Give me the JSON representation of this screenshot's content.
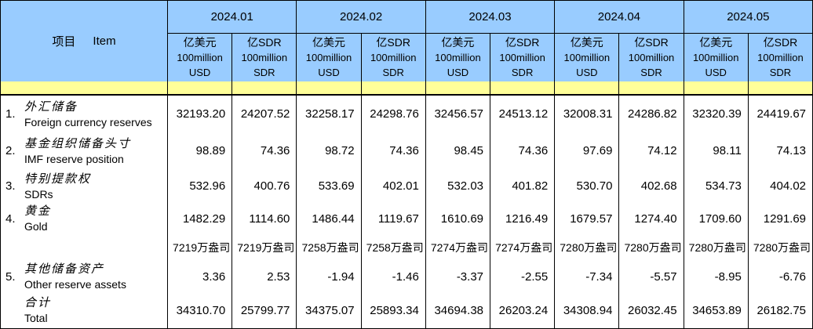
{
  "header": {
    "item_zh": "项目",
    "item_en": "Item",
    "months": [
      "2024.01",
      "2024.02",
      "2024.03",
      "2024.04",
      "2024.05"
    ],
    "units": {
      "usd": {
        "zh": "亿美元",
        "l2": "100million",
        "l3": "USD"
      },
      "sdr": {
        "zh": "亿SDR",
        "l2": "100million",
        "l3": "SDR"
      }
    }
  },
  "rows": [
    {
      "no": "1.",
      "zh": "外汇储备",
      "en": "Foreign currency reserves",
      "values": [
        "32193.20",
        "24207.52",
        "32258.17",
        "24298.76",
        "32456.57",
        "24513.12",
        "32008.31",
        "24286.82",
        "32320.39",
        "24419.67"
      ]
    },
    {
      "no": "2.",
      "zh": "基金组织储备头寸",
      "en": "IMF reserve position",
      "values": [
        "98.89",
        "74.36",
        "98.72",
        "74.36",
        "98.45",
        "74.36",
        "97.69",
        "74.12",
        "98.11",
        "74.13"
      ]
    },
    {
      "no": "3.",
      "zh": "特别提款权",
      "en": "SDRs",
      "values": [
        "532.96",
        "400.76",
        "533.69",
        "402.01",
        "532.03",
        "401.82",
        "530.70",
        "402.68",
        "534.73",
        "404.02"
      ]
    },
    {
      "no": "4.",
      "zh": "黄金",
      "en": "Gold",
      "values": [
        "1482.29",
        "1114.60",
        "1486.44",
        "1119.67",
        "1610.69",
        "1216.49",
        "1679.57",
        "1274.40",
        "1709.60",
        "1291.69"
      ]
    },
    {
      "no": "",
      "zh": "",
      "en": "",
      "values": [
        "7219万盎司",
        "7219万盎司",
        "7258万盎司",
        "7258万盎司",
        "7274万盎司",
        "7274万盎司",
        "7280万盎司",
        "7280万盎司",
        "7280万盎司",
        "7280万盎司"
      ]
    },
    {
      "no": "5.",
      "zh": "其他储备资产",
      "en": "Other reserve assets",
      "values": [
        "3.36",
        "2.53",
        "-1.94",
        "-1.46",
        "-3.37",
        "-2.55",
        "-7.34",
        "-5.57",
        "-8.95",
        "-6.76"
      ]
    },
    {
      "no": "",
      "zh": "合计",
      "en": "Total",
      "values": [
        "34310.70",
        "25799.77",
        "34375.07",
        "25893.34",
        "34694.38",
        "26203.24",
        "34308.94",
        "26032.45",
        "34653.89",
        "26182.75"
      ]
    }
  ],
  "colors": {
    "header_bg": "#99CCFF",
    "band_bg": "#FFFF99",
    "border": "#000000",
    "text": "#000000"
  }
}
